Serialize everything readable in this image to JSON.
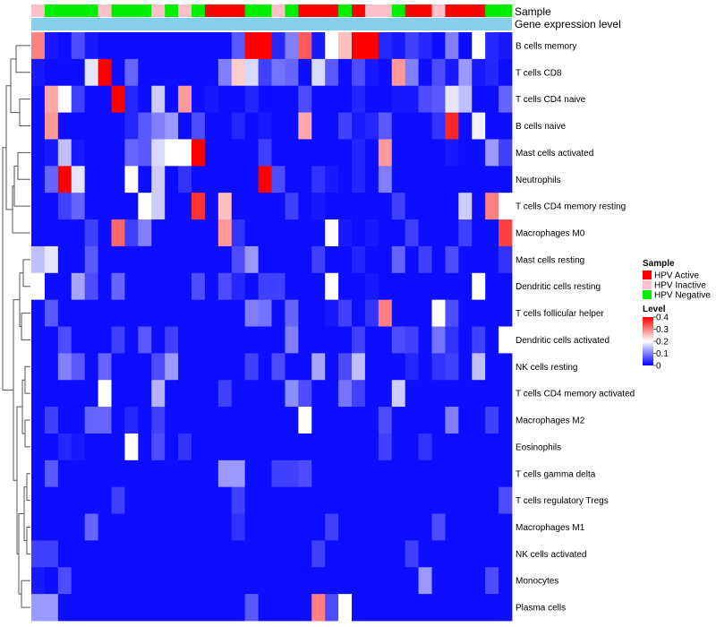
{
  "chart_data": {
    "type": "heatmap",
    "rows": [
      "B cells memory",
      "T cells CD8",
      "T cells CD4 naive",
      "B cells naive",
      "Mast cells activated",
      "Neutrophils",
      "T cells CD4 memory resting",
      "Macrophages M0",
      "Mast cells resting",
      "Dendritic cells resting",
      "T cells follicular helper",
      "Dendritic cells activated",
      "NK cells resting",
      "T cells CD4 memory activated",
      "Macrophages M2",
      "Eosinophils",
      "T cells gamma delta",
      "T cells regulatory  Tregs",
      "Macrophages M1",
      "NK cells activated",
      "Monocytes",
      "Plasma cells"
    ],
    "annotations": {
      "sample_label": "Sample",
      "expression_label": "Gene expression level",
      "expression_color": "#87ceeb",
      "sample_per_column": [
        "HPV Inactive",
        "HPV Negative",
        "HPV Negative",
        "HPV Negative",
        "HPV Negative",
        "HPV Inactive",
        "HPV Negative",
        "HPV Negative",
        "HPV Negative",
        "HPV Inactive",
        "HPV Negative",
        "HPV Inactive",
        "HPV Negative",
        "HPV Active",
        "HPV Active",
        "HPV Active",
        "HPV Negative",
        "HPV Negative",
        "HPV Inactive",
        "HPV Negative",
        "HPV Active",
        "HPV Active",
        "HPV Active",
        "HPV Negative",
        "HPV Active",
        "HPV Inactive",
        "HPV Inactive",
        "HPV Negative",
        "HPV Active",
        "HPV Active",
        "HPV Inactive",
        "HPV Active",
        "HPV Active",
        "HPV Active",
        "HPV Negative",
        "HPV Negative"
      ]
    },
    "values": [
      [
        0.3,
        0.02,
        0.01,
        0.06,
        0.02,
        0.01,
        0.01,
        0.01,
        0.01,
        0.01,
        0.01,
        0.01,
        0.01,
        0.01,
        0.01,
        0.07,
        0.4,
        0.4,
        0.03,
        0.1,
        0.33,
        0.02,
        0.2,
        0.25,
        0.4,
        0.4,
        0.03,
        0.02,
        0.05,
        0.03,
        0.01,
        0.1,
        0.01,
        0.2,
        0.03,
        0.02
      ],
      [
        0.02,
        0.01,
        0.01,
        0.01,
        0.18,
        0.4,
        0.01,
        0.08,
        0.01,
        0.01,
        0.01,
        0.01,
        0.01,
        0.01,
        0.1,
        0.24,
        0.17,
        0.05,
        0.09,
        0.08,
        0.01,
        0.17,
        0.07,
        0.01,
        0.06,
        0.02,
        0.01,
        0.28,
        0.1,
        0.01,
        0.06,
        0.02,
        0.12,
        0.02,
        0.03,
        0.01
      ],
      [
        0.01,
        0.27,
        0.2,
        0.05,
        0.01,
        0.01,
        0.4,
        0.03,
        0.01,
        0.16,
        0.01,
        0.28,
        0.01,
        0.02,
        0.01,
        0.01,
        0.03,
        0.01,
        0.01,
        0.01,
        0.06,
        0.01,
        0.01,
        0.01,
        0.03,
        0.01,
        0.01,
        0.02,
        0.02,
        0.06,
        0.07,
        0.18,
        0.15,
        0.01,
        0.01,
        0.08
      ],
      [
        0.01,
        0.28,
        0.01,
        0.01,
        0.01,
        0.01,
        0.01,
        0.03,
        0.07,
        0.1,
        0.12,
        0.01,
        0.06,
        0.01,
        0.01,
        0.03,
        0.01,
        0.02,
        0.01,
        0.01,
        0.27,
        0.01,
        0.01,
        0.05,
        0.02,
        0.03,
        0.07,
        0.01,
        0.01,
        0.01,
        0.04,
        0.37,
        0.01,
        0.19,
        0.01,
        0.01
      ],
      [
        0.01,
        0.02,
        0.15,
        0.02,
        0.01,
        0.01,
        0.01,
        0.08,
        0.07,
        0.17,
        0.2,
        0.2,
        0.4,
        0.01,
        0.01,
        0.01,
        0.01,
        0.05,
        0.01,
        0.01,
        0.01,
        0.01,
        0.01,
        0.01,
        0.03,
        0.01,
        0.28,
        0.01,
        0.01,
        0.01,
        0.01,
        0.02,
        0.01,
        0.01,
        0.12,
        0.05
      ],
      [
        0.01,
        0.08,
        0.4,
        0.18,
        0.01,
        0.01,
        0.01,
        0.2,
        0.01,
        0.16,
        0.01,
        0.04,
        0.01,
        0.01,
        0.01,
        0.01,
        0.01,
        0.4,
        0.06,
        0.01,
        0.01,
        0.04,
        0.02,
        0.01,
        0.03,
        0.01,
        0.1,
        0.01,
        0.01,
        0.01,
        0.01,
        0.01,
        0.01,
        0.01,
        0.01,
        0.01
      ],
      [
        0.01,
        0.01,
        0.05,
        0.08,
        0.01,
        0.01,
        0.01,
        0.01,
        0.2,
        0.16,
        0.01,
        0.01,
        0.36,
        0.01,
        0.25,
        0.01,
        0.01,
        0.01,
        0.01,
        0.05,
        0.01,
        0.02,
        0.01,
        0.01,
        0.01,
        0.01,
        0.01,
        0.05,
        0.01,
        0.01,
        0.01,
        0.01,
        0.16,
        0.01,
        0.3,
        0.2
      ],
      [
        0.01,
        0.01,
        0.01,
        0.01,
        0.05,
        0.01,
        0.32,
        0.05,
        0.1,
        0.01,
        0.01,
        0.01,
        0.01,
        0.01,
        0.28,
        0.04,
        0.01,
        0.01,
        0.01,
        0.01,
        0.01,
        0.01,
        0.2,
        0.02,
        0.01,
        0.02,
        0.01,
        0.01,
        0.05,
        0.01,
        0.01,
        0.01,
        0.05,
        0.01,
        0.01,
        0.35
      ],
      [
        0.15,
        0.18,
        0.01,
        0.01,
        0.07,
        0.01,
        0.01,
        0.01,
        0.01,
        0.01,
        0.01,
        0.01,
        0.01,
        0.01,
        0.01,
        0.06,
        0.12,
        0.01,
        0.01,
        0.01,
        0.01,
        0.05,
        0.01,
        0.01,
        0.03,
        0.01,
        0.01,
        0.08,
        0.01,
        0.05,
        0.01,
        0.06,
        0.01,
        0.01,
        0.01,
        0.04
      ],
      [
        0.2,
        0.01,
        0.01,
        0.13,
        0.06,
        0.01,
        0.08,
        0.01,
        0.01,
        0.01,
        0.01,
        0.01,
        0.06,
        0.01,
        0.06,
        0.03,
        0.01,
        0.05,
        0.05,
        0.01,
        0.01,
        0.01,
        0.2,
        0.01,
        0.01,
        0.02,
        0.01,
        0.01,
        0.01,
        0.01,
        0.01,
        0.01,
        0.01,
        0.2,
        0.01,
        0.01
      ],
      [
        0.01,
        0.07,
        0.01,
        0.01,
        0.01,
        0.01,
        0.01,
        0.01,
        0.01,
        0.01,
        0.01,
        0.01,
        0.01,
        0.01,
        0.01,
        0.01,
        0.1,
        0.09,
        0.01,
        0.08,
        0.01,
        0.01,
        0.02,
        0.05,
        0.01,
        0.04,
        0.3,
        0.01,
        0.01,
        0.01,
        0.2,
        0.06,
        0.01,
        0.01,
        0.01,
        0.01
      ],
      [
        0.01,
        0.01,
        0.06,
        0.01,
        0.01,
        0.01,
        0.05,
        0.01,
        0.07,
        0.01,
        0.05,
        0.01,
        0.01,
        0.01,
        0.01,
        0.01,
        0.01,
        0.01,
        0.01,
        0.1,
        0.01,
        0.01,
        0.01,
        0.01,
        0.05,
        0.01,
        0.01,
        0.06,
        0.05,
        0.01,
        0.09,
        0.04,
        0.01,
        0.05,
        0.01,
        0.2
      ],
      [
        0.01,
        0.01,
        0.1,
        0.07,
        0.01,
        0.08,
        0.01,
        0.01,
        0.01,
        0.06,
        0.12,
        0.01,
        0.01,
        0.01,
        0.01,
        0.01,
        0.05,
        0.01,
        0.06,
        0.01,
        0.01,
        0.13,
        0.01,
        0.06,
        0.15,
        0.01,
        0.01,
        0.01,
        0.03,
        0.01,
        0.04,
        0.05,
        0.01,
        0.15,
        0.01,
        0.01
      ],
      [
        0.01,
        0.01,
        0.01,
        0.01,
        0.01,
        0.2,
        0.01,
        0.01,
        0.01,
        0.14,
        0.01,
        0.01,
        0.01,
        0.01,
        0.05,
        0.01,
        0.01,
        0.01,
        0.01,
        0.11,
        0.06,
        0.01,
        0.01,
        0.09,
        0.05,
        0.01,
        0.01,
        0.16,
        0.01,
        0.01,
        0.01,
        0.01,
        0.01,
        0.01,
        0.01,
        0.01
      ],
      [
        0.01,
        0.05,
        0.01,
        0.01,
        0.08,
        0.08,
        0.01,
        0.03,
        0.01,
        0.05,
        0.01,
        0.01,
        0.01,
        0.01,
        0.01,
        0.01,
        0.01,
        0.01,
        0.01,
        0.01,
        0.2,
        0.01,
        0.01,
        0.01,
        0.01,
        0.01,
        0.06,
        0.01,
        0.01,
        0.01,
        0.01,
        0.1,
        0.01,
        0.01,
        0.05,
        0.01
      ],
      [
        0.01,
        0.01,
        0.03,
        0.02,
        0.01,
        0.01,
        0.01,
        0.2,
        0.01,
        0.06,
        0.01,
        0.04,
        0.01,
        0.01,
        0.01,
        0.01,
        0.01,
        0.01,
        0.01,
        0.01,
        0.01,
        0.01,
        0.01,
        0.01,
        0.01,
        0.01,
        0.05,
        0.01,
        0.01,
        0.04,
        0.01,
        0.01,
        0.01,
        0.01,
        0.01,
        0.01
      ],
      [
        0.01,
        0.07,
        0.01,
        0.01,
        0.01,
        0.01,
        0.01,
        0.01,
        0.01,
        0.01,
        0.01,
        0.01,
        0.01,
        0.01,
        0.12,
        0.12,
        0.01,
        0.01,
        0.05,
        0.05,
        0.06,
        0.01,
        0.01,
        0.01,
        0.01,
        0.01,
        0.01,
        0.01,
        0.01,
        0.01,
        0.01,
        0.01,
        0.01,
        0.01,
        0.01,
        0.01
      ],
      [
        0.01,
        0.01,
        0.01,
        0.01,
        0.01,
        0.01,
        0.05,
        0.01,
        0.01,
        0.01,
        0.01,
        0.01,
        0.01,
        0.01,
        0.01,
        0.05,
        0.01,
        0.01,
        0.01,
        0.01,
        0.01,
        0.01,
        0.01,
        0.01,
        0.01,
        0.01,
        0.01,
        0.01,
        0.01,
        0.01,
        0.01,
        0.01,
        0.01,
        0.01,
        0.01,
        0.06
      ],
      [
        0.01,
        0.01,
        0.01,
        0.01,
        0.08,
        0.01,
        0.01,
        0.01,
        0.01,
        0.01,
        0.01,
        0.01,
        0.01,
        0.01,
        0.01,
        0.04,
        0.01,
        0.01,
        0.01,
        0.01,
        0.01,
        0.01,
        0.05,
        0.01,
        0.01,
        0.01,
        0.01,
        0.01,
        0.01,
        0.01,
        0.06,
        0.01,
        0.01,
        0.01,
        0.01,
        0.01
      ],
      [
        0.05,
        0.05,
        0.01,
        0.01,
        0.01,
        0.01,
        0.01,
        0.01,
        0.01,
        0.01,
        0.01,
        0.01,
        0.01,
        0.01,
        0.01,
        0.01,
        0.01,
        0.01,
        0.01,
        0.01,
        0.01,
        0.05,
        0.01,
        0.01,
        0.01,
        0.01,
        0.01,
        0.01,
        0.05,
        0.01,
        0.01,
        0.01,
        0.01,
        0.01,
        0.01,
        0.01
      ],
      [
        0.02,
        0.01,
        0.06,
        0.01,
        0.01,
        0.01,
        0.01,
        0.01,
        0.01,
        0.01,
        0.01,
        0.01,
        0.01,
        0.01,
        0.01,
        0.01,
        0.01,
        0.01,
        0.01,
        0.01,
        0.01,
        0.01,
        0.01,
        0.01,
        0.01,
        0.01,
        0.01,
        0.01,
        0.01,
        0.12,
        0.01,
        0.01,
        0.01,
        0.01,
        0.06,
        0.01
      ],
      [
        0.12,
        0.12,
        0.01,
        0.01,
        0.01,
        0.01,
        0.01,
        0.01,
        0.01,
        0.01,
        0.01,
        0.01,
        0.01,
        0.01,
        0.01,
        0.01,
        0.07,
        0.01,
        0.01,
        0.01,
        0.01,
        0.3,
        0.06,
        0.2,
        0.01,
        0.01,
        0.01,
        0.01,
        0.01,
        0.01,
        0.01,
        0.01,
        0.01,
        0.01,
        0.01,
        0.01
      ]
    ],
    "color_scale": {
      "min": 0,
      "max": 0.4,
      "low": "#0000ff",
      "mid": "#ffffff",
      "high": "#ff0000"
    },
    "legend": {
      "sample_title": "Sample",
      "sample_items": [
        {
          "label": "HPV Active",
          "color": "#ff0000"
        },
        {
          "label": "HPV Inactive",
          "color": "#ffc0cb"
        },
        {
          "label": "HPV Negative",
          "color": "#00ee00"
        }
      ],
      "level_title": "Level",
      "level_ticks": [
        "0.4",
        "0.3",
        "0.2",
        "0.1",
        "0"
      ],
      "level_tick_values": [
        0.4,
        0.3,
        0.2,
        0.1,
        0
      ],
      "placement": "right"
    },
    "row_dendrogram": true
  }
}
